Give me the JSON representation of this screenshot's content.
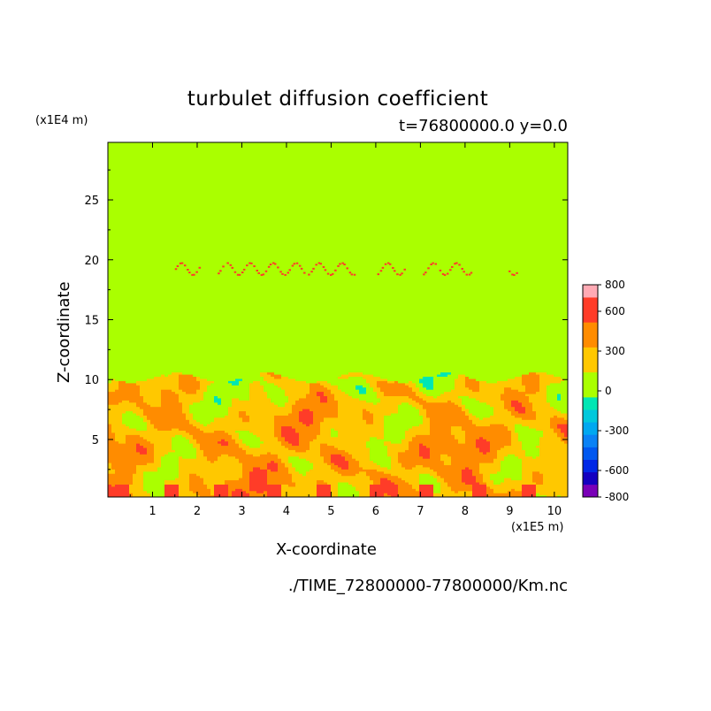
{
  "chart_data": {
    "type": "heatmap",
    "title": "turbulet diffusion coefficient",
    "subtitle": "t=76800000.0 y=0.0",
    "xlabel": "X-coordinate",
    "ylabel": "Z-coordinate",
    "x_unit": "(x1E5 m)",
    "y_unit": "(x1E4 m)",
    "source": "./TIME_72800000-77800000/Km.nc",
    "xlim": [
      0,
      10.3
    ],
    "ylim": [
      0.2,
      29.8
    ],
    "x_ticks": [
      "1",
      "2",
      "3",
      "4",
      "5",
      "6",
      "7",
      "8",
      "9",
      "10"
    ],
    "y_ticks": [
      "5",
      "10",
      "15",
      "20",
      "25"
    ],
    "colorbar": {
      "levels": [
        -800,
        -700,
        -600,
        -500,
        -400,
        -300,
        -200,
        -100,
        0,
        100,
        200,
        300,
        400,
        500,
        600,
        700,
        800
      ],
      "tick_labels": [
        "800",
        "600",
        "300",
        "0",
        "-300",
        "-600",
        "-800"
      ],
      "colors": [
        "#7a00b8",
        "#1400c0",
        "#0028e6",
        "#0058f0",
        "#0a82f5",
        "#00a8f0",
        "#00c8dc",
        "#00e6b4",
        "#aaff00",
        "#aaff00",
        "#ffc800",
        "#ffc800",
        "#ff8c00",
        "#ff8c00",
        "#ff3c28",
        "#ff3c28",
        "#ffaab4"
      ]
    },
    "background_value": 0,
    "boundary_layer_top": 11,
    "band_z": 19.5,
    "band_extent_x": [
      1.5,
      9.2
    ]
  }
}
